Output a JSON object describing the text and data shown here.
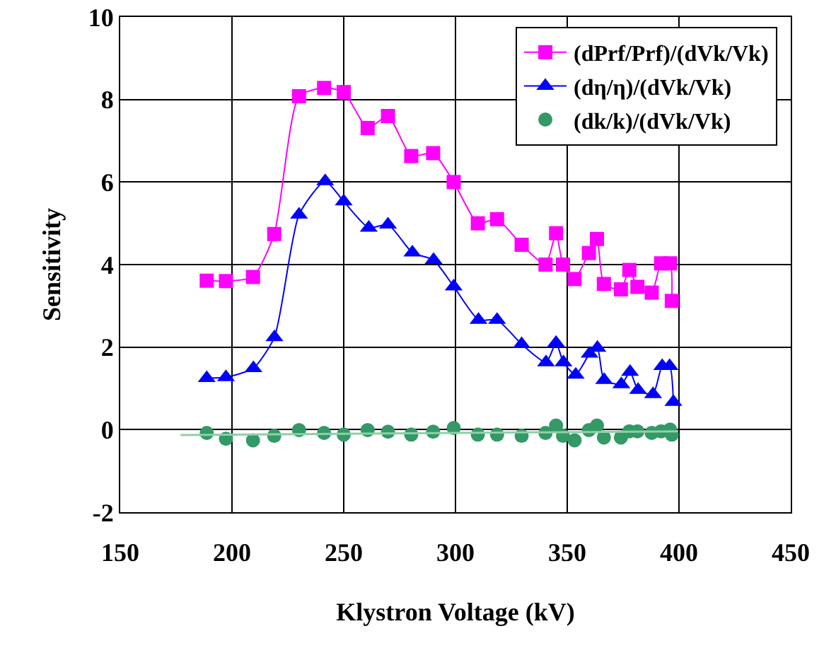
{
  "chart_data": {
    "type": "line",
    "xlabel": "Klystron Voltage (kV)",
    "ylabel": "Sensitivity",
    "xlim": [
      150,
      450
    ],
    "xticks": [
      150,
      200,
      250,
      300,
      350,
      400,
      450
    ],
    "ylim": [
      -2,
      10
    ],
    "yticks": [
      -2,
      0,
      2,
      4,
      6,
      8,
      10
    ],
    "grid": true,
    "legend": "top right",
    "line_style": "solid",
    "series": [
      {
        "name": "(dPrf/Prf)/(dVk/Vk)",
        "type": "line",
        "marker": "square",
        "color": "#ff00ff",
        "x": [
          188.7,
          197.3,
          209.4,
          218.9,
          230,
          241.2,
          250,
          260.7,
          269.8,
          280.2,
          290,
          299.2,
          310,
          318.6,
          329.6,
          340.3,
          345,
          348.1,
          353.3,
          359.7,
          363.3,
          366.4,
          374,
          377.8,
          381.4,
          387.8,
          392,
          396,
          396.8
        ],
        "values": [
          3.61,
          3.6,
          3.7,
          4.74,
          8.08,
          8.28,
          8.18,
          7.31,
          7.6,
          6.63,
          6.7,
          6.0,
          5.0,
          5.1,
          4.48,
          4.0,
          4.76,
          4.0,
          3.65,
          4.28,
          4.62,
          3.53,
          3.4,
          3.87,
          3.46,
          3.32,
          4.03,
          4.03,
          3.12
        ]
      },
      {
        "name": "(dη/η)/(dVk/Vk)",
        "type": "line",
        "marker": "triangle",
        "color": "#0000ff",
        "x": [
          188.7,
          197.3,
          209.6,
          219,
          230,
          241.7,
          250,
          261.2,
          269.8,
          280.7,
          290.2,
          299.2,
          310.3,
          318.6,
          329.6,
          340.5,
          345,
          348.3,
          353.8,
          360,
          363.5,
          366.5,
          374.2,
          378.1,
          381.7,
          388.4,
          392.5,
          395.8,
          397.5
        ],
        "values": [
          1.25,
          1.27,
          1.49,
          2.24,
          5.21,
          6.02,
          5.53,
          4.89,
          4.97,
          4.29,
          4.11,
          3.47,
          2.66,
          2.66,
          2.07,
          1.63,
          2.1,
          1.63,
          1.33,
          1.84,
          1.98,
          1.2,
          1.1,
          1.4,
          0.96,
          0.86,
          1.54,
          1.54,
          0.67
        ]
      },
      {
        "name": "(dk/k)/(dVk/Vk)",
        "type": "scatter",
        "marker": "circle",
        "color": "#339966",
        "x": [
          188.7,
          197.3,
          209.4,
          218.9,
          230,
          241.2,
          250,
          260.7,
          269.8,
          280.2,
          290,
          299.2,
          310,
          318.6,
          329.6,
          340.3,
          345,
          348.1,
          353.3,
          359.7,
          363.3,
          366.4,
          374,
          377.8,
          381.4,
          387.8,
          392,
          396,
          396.8
        ],
        "values": [
          -0.08,
          -0.22,
          -0.26,
          -0.15,
          -0.01,
          -0.08,
          -0.12,
          -0.01,
          -0.05,
          -0.12,
          -0.05,
          0.04,
          -0.12,
          -0.12,
          -0.15,
          -0.08,
          0.1,
          -0.15,
          -0.26,
          -0.01,
          0.1,
          -0.19,
          -0.19,
          -0.04,
          -0.04,
          -0.08,
          -0.04,
          0,
          -0.12
        ]
      },
      {
        "type": "line",
        "marker": "none",
        "color": "#8fcfa8",
        "x": [
          177,
          399.6
        ],
        "values": [
          -0.13,
          -0.04
        ]
      }
    ]
  }
}
